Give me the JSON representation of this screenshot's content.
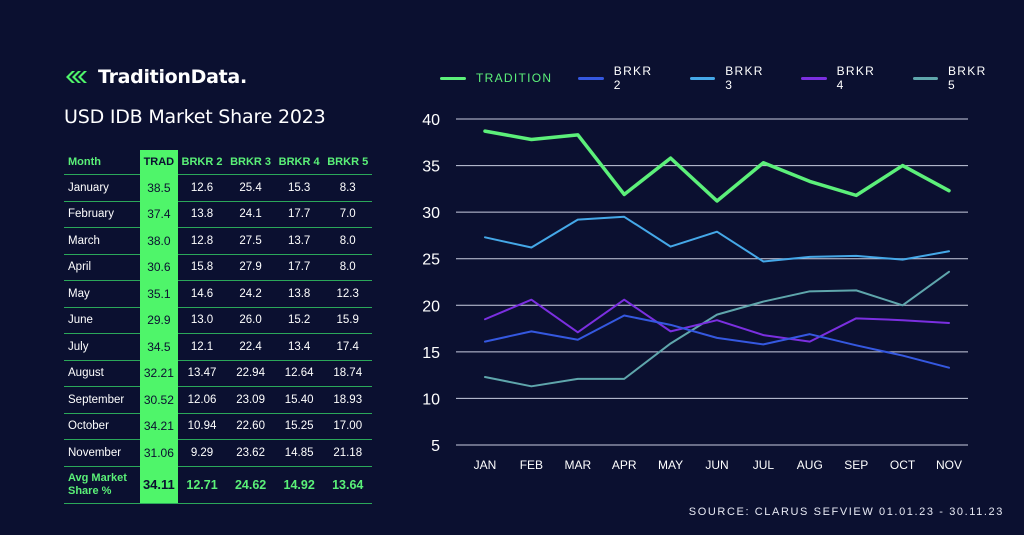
{
  "brand": {
    "name": "TraditionData.",
    "accent": "#4ff56a"
  },
  "title": "USD IDB Market Share 2023",
  "table": {
    "headers": [
      "Month",
      "TRAD",
      "BRKR 2",
      "BRKR 3",
      "BRKR 4",
      "BRKR 5"
    ],
    "rows": [
      [
        "January",
        "38.5",
        "12.6",
        "25.4",
        "15.3",
        "8.3"
      ],
      [
        "February",
        "37.4",
        "13.8",
        "24.1",
        "17.7",
        "7.0"
      ],
      [
        "March",
        "38.0",
        "12.8",
        "27.5",
        "13.7",
        "8.0"
      ],
      [
        "April",
        "30.6",
        "15.8",
        "27.9",
        "17.7",
        "8.0"
      ],
      [
        "May",
        "35.1",
        "14.6",
        "24.2",
        "13.8",
        "12.3"
      ],
      [
        "June",
        "29.9",
        "13.0",
        "26.0",
        "15.2",
        "15.9"
      ],
      [
        "July",
        "34.5",
        "12.1",
        "22.4",
        "13.4",
        "17.4"
      ],
      [
        "August",
        "32.21",
        "13.47",
        "22.94",
        "12.64",
        "18.74"
      ],
      [
        "September",
        "30.52",
        "12.06",
        "23.09",
        "15.40",
        "18.93"
      ],
      [
        "October",
        "34.21",
        "10.94",
        "22.60",
        "15.25",
        "17.00"
      ],
      [
        "November",
        "31.06",
        "9.29",
        "23.62",
        "14.85",
        "21.18"
      ]
    ],
    "avg_label_line1": "Avg Market",
    "avg_label_line2": "Share %",
    "avg": [
      "34.11",
      "12.71",
      "24.62",
      "14.92",
      "13.64"
    ]
  },
  "chart_data": {
    "type": "line",
    "categories": [
      "JAN",
      "FEB",
      "MAR",
      "APR",
      "MAY",
      "JUN",
      "JUL",
      "AUG",
      "SEP",
      "OCT",
      "NOV"
    ],
    "ylim": [
      5,
      40
    ],
    "yticks": [
      40,
      35,
      30,
      25,
      20,
      15,
      10,
      5
    ],
    "grid": true,
    "legend_position": "top",
    "series": [
      {
        "name": "TRADITION",
        "color": "#5cf07a",
        "values": [
          38.7,
          37.8,
          38.3,
          31.9,
          35.8,
          31.2,
          35.3,
          33.3,
          31.8,
          35.0,
          32.3
        ]
      },
      {
        "name": "BRKR 2",
        "color": "#3558e0",
        "values": [
          16.1,
          17.2,
          16.3,
          18.9,
          17.9,
          16.5,
          15.8,
          16.9,
          15.7,
          14.6,
          13.3
        ]
      },
      {
        "name": "BRKR 3",
        "color": "#45a8e8",
        "values": [
          27.3,
          26.2,
          29.2,
          29.5,
          26.3,
          27.9,
          24.7,
          25.2,
          25.3,
          24.9,
          25.8
        ]
      },
      {
        "name": "BRKR 4",
        "color": "#7b2fe0",
        "values": [
          18.5,
          20.6,
          17.1,
          20.6,
          17.2,
          18.4,
          16.8,
          16.1,
          18.6,
          18.4,
          18.1
        ]
      },
      {
        "name": "BRKR 5",
        "color": "#5fa6ac",
        "values": [
          12.3,
          11.3,
          12.1,
          12.1,
          15.9,
          19.0,
          20.4,
          21.5,
          21.6,
          20.0,
          23.6
        ]
      }
    ]
  },
  "source": "SOURCE: CLARUS SEFVIEW 01.01.23 - 30.11.23"
}
